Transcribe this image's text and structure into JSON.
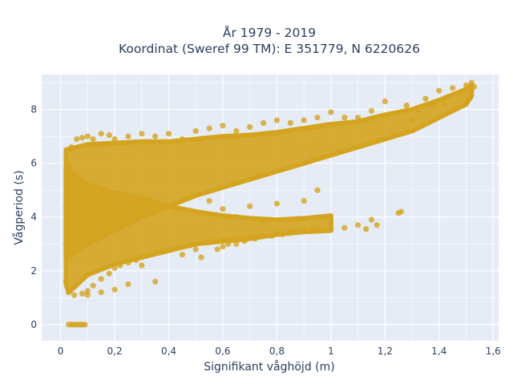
{
  "chart_data": {
    "type": "scatter",
    "title_lines": [
      "År 1979 - 2019",
      "Koordinat (Sweref 99 TM): E 351779, N 6220626"
    ],
    "xlabel": "Signifikant våghöjd (m)",
    "ylabel": "Vågperiod (s)",
    "xlim": [
      -0.07,
      1.62
    ],
    "ylim": [
      -0.6,
      9.3
    ],
    "x_ticks": [
      0,
      0.2,
      0.4,
      0.6,
      0.8,
      1,
      1.2,
      1.4,
      1.6
    ],
    "x_tick_labels": [
      "0",
      "0,2",
      "0,4",
      "0,6",
      "0,8",
      "1",
      "1,2",
      "1,4",
      "1,6"
    ],
    "y_ticks": [
      0,
      2,
      4,
      6,
      8
    ],
    "y_tick_labels": [
      "0",
      "2",
      "4",
      "6",
      "8"
    ],
    "grid": true,
    "marker_color": "#d4a41f",
    "plot_bg": "#e5ecf6",
    "series": [
      {
        "points": [
          [
            0.03,
            0
          ],
          [
            0.04,
            0
          ],
          [
            0.05,
            0
          ],
          [
            0.06,
            0
          ],
          [
            0.07,
            0
          ],
          [
            0.08,
            0
          ],
          [
            0.09,
            0
          ],
          [
            0.02,
            1.6
          ],
          [
            0.02,
            3.0
          ],
          [
            0.02,
            4.4
          ],
          [
            0.03,
            1.2
          ],
          [
            0.03,
            5.9
          ],
          [
            0.04,
            6.6
          ],
          [
            0.05,
            1.1
          ],
          [
            0.06,
            6.9
          ],
          [
            0.08,
            1.15
          ],
          [
            0.08,
            6.95
          ],
          [
            0.1,
            1.25
          ],
          [
            0.1,
            7.0
          ],
          [
            0.12,
            1.45
          ],
          [
            0.12,
            6.9
          ],
          [
            0.15,
            1.7
          ],
          [
            0.15,
            7.1
          ],
          [
            0.18,
            1.9
          ],
          [
            0.18,
            7.05
          ],
          [
            0.2,
            2.1
          ],
          [
            0.2,
            6.9
          ],
          [
            0.22,
            2.2
          ],
          [
            0.25,
            2.3
          ],
          [
            0.25,
            7.0
          ],
          [
            0.28,
            2.4
          ],
          [
            0.3,
            2.5
          ],
          [
            0.3,
            7.1
          ],
          [
            0.33,
            2.6
          ],
          [
            0.35,
            2.7
          ],
          [
            0.35,
            7.0
          ],
          [
            0.38,
            2.75
          ],
          [
            0.4,
            2.8
          ],
          [
            0.4,
            7.1
          ],
          [
            0.43,
            2.85
          ],
          [
            0.45,
            2.9
          ],
          [
            0.45,
            6.9
          ],
          [
            0.48,
            2.95
          ],
          [
            0.5,
            3.0
          ],
          [
            0.5,
            7.2
          ],
          [
            0.52,
            2.5
          ],
          [
            0.55,
            3.1
          ],
          [
            0.55,
            7.3
          ],
          [
            0.58,
            2.8
          ],
          [
            0.6,
            3.15
          ],
          [
            0.6,
            7.4
          ],
          [
            0.62,
            3.0
          ],
          [
            0.65,
            3.2
          ],
          [
            0.65,
            7.2
          ],
          [
            0.68,
            3.1
          ],
          [
            0.7,
            3.3
          ],
          [
            0.7,
            7.35
          ],
          [
            0.72,
            3.2
          ],
          [
            0.75,
            3.3
          ],
          [
            0.75,
            7.5
          ],
          [
            0.78,
            3.3
          ],
          [
            0.8,
            3.4
          ],
          [
            0.8,
            7.6
          ],
          [
            0.82,
            3.35
          ],
          [
            0.85,
            3.45
          ],
          [
            0.85,
            7.5
          ],
          [
            0.88,
            3.5
          ],
          [
            0.9,
            3.55
          ],
          [
            0.9,
            7.6
          ],
          [
            0.93,
            3.55
          ],
          [
            0.95,
            3.6
          ],
          [
            0.95,
            7.7
          ],
          [
            1.0,
            3.55
          ],
          [
            1.0,
            7.9
          ],
          [
            1.05,
            3.6
          ],
          [
            1.05,
            7.7
          ],
          [
            1.1,
            3.7
          ],
          [
            1.1,
            7.7
          ],
          [
            1.13,
            3.55
          ],
          [
            1.15,
            3.9
          ],
          [
            1.15,
            7.95
          ],
          [
            1.17,
            3.7
          ],
          [
            1.2,
            8.3
          ],
          [
            1.25,
            4.15
          ],
          [
            1.26,
            4.2
          ],
          [
            1.28,
            8.15
          ],
          [
            1.3,
            7.6
          ],
          [
            1.32,
            7.95
          ],
          [
            1.35,
            8.4
          ],
          [
            1.38,
            8.2
          ],
          [
            1.4,
            8.7
          ],
          [
            1.42,
            8.2
          ],
          [
            1.45,
            8.8
          ],
          [
            1.48,
            8.6
          ],
          [
            1.5,
            8.9
          ],
          [
            1.52,
            9.0
          ],
          [
            1.53,
            8.85
          ],
          [
            0.55,
            4.6
          ],
          [
            0.6,
            4.3
          ],
          [
            0.65,
            4.0
          ],
          [
            0.7,
            4.4
          ],
          [
            0.75,
            3.8
          ],
          [
            0.8,
            4.5
          ],
          [
            0.85,
            3.9
          ],
          [
            0.9,
            4.6
          ],
          [
            0.95,
            5.0
          ],
          [
            0.3,
            2.2
          ],
          [
            0.45,
            2.6
          ],
          [
            0.5,
            2.8
          ],
          [
            0.6,
            2.9
          ],
          [
            0.65,
            3.0
          ],
          [
            0.35,
            1.6
          ],
          [
            0.25,
            1.5
          ],
          [
            0.2,
            1.3
          ],
          [
            0.15,
            1.2
          ],
          [
            0.1,
            1.1
          ]
        ]
      }
    ],
    "density_bands": [
      {
        "upper": [
          [
            0.02,
            6.5
          ],
          [
            0.1,
            6.7
          ],
          [
            0.2,
            6.75
          ],
          [
            0.3,
            6.8
          ],
          [
            0.4,
            6.8
          ],
          [
            0.5,
            6.9
          ],
          [
            0.6,
            7.0
          ],
          [
            0.7,
            7.05
          ],
          [
            0.8,
            7.15
          ],
          [
            0.9,
            7.3
          ],
          [
            1.0,
            7.45
          ],
          [
            1.1,
            7.55
          ],
          [
            1.2,
            7.8
          ],
          [
            1.3,
            8.0
          ],
          [
            1.4,
            8.35
          ],
          [
            1.5,
            8.75
          ],
          [
            1.52,
            8.9
          ]
        ],
        "lower": [
          [
            1.52,
            8.5
          ],
          [
            1.5,
            8.2
          ],
          [
            1.4,
            7.7
          ],
          [
            1.3,
            7.2
          ],
          [
            1.2,
            6.9
          ],
          [
            1.1,
            6.6
          ],
          [
            1.0,
            6.3
          ],
          [
            0.9,
            6.0
          ],
          [
            0.8,
            5.7
          ],
          [
            0.7,
            5.4
          ],
          [
            0.6,
            5.1
          ],
          [
            0.5,
            4.8
          ],
          [
            0.4,
            4.4
          ],
          [
            0.3,
            4.0
          ],
          [
            0.2,
            3.5
          ],
          [
            0.1,
            3.0
          ],
          [
            0.02,
            2.5
          ]
        ]
      },
      {
        "upper": [
          [
            0.02,
            5.8
          ],
          [
            0.1,
            5.2
          ],
          [
            0.2,
            4.9
          ],
          [
            0.3,
            4.7
          ],
          [
            0.4,
            4.4
          ],
          [
            0.5,
            4.2
          ],
          [
            0.6,
            4.05
          ],
          [
            0.7,
            3.95
          ],
          [
            0.8,
            3.9
          ],
          [
            0.9,
            3.95
          ],
          [
            1.0,
            4.05
          ]
        ],
        "lower": [
          [
            1.0,
            3.5
          ],
          [
            0.9,
            3.45
          ],
          [
            0.8,
            3.35
          ],
          [
            0.7,
            3.2
          ],
          [
            0.6,
            3.1
          ],
          [
            0.5,
            3.0
          ],
          [
            0.4,
            2.75
          ],
          [
            0.3,
            2.5
          ],
          [
            0.2,
            2.25
          ],
          [
            0.1,
            1.85
          ],
          [
            0.03,
            1.2
          ],
          [
            0.02,
            1.5
          ]
        ]
      }
    ]
  }
}
